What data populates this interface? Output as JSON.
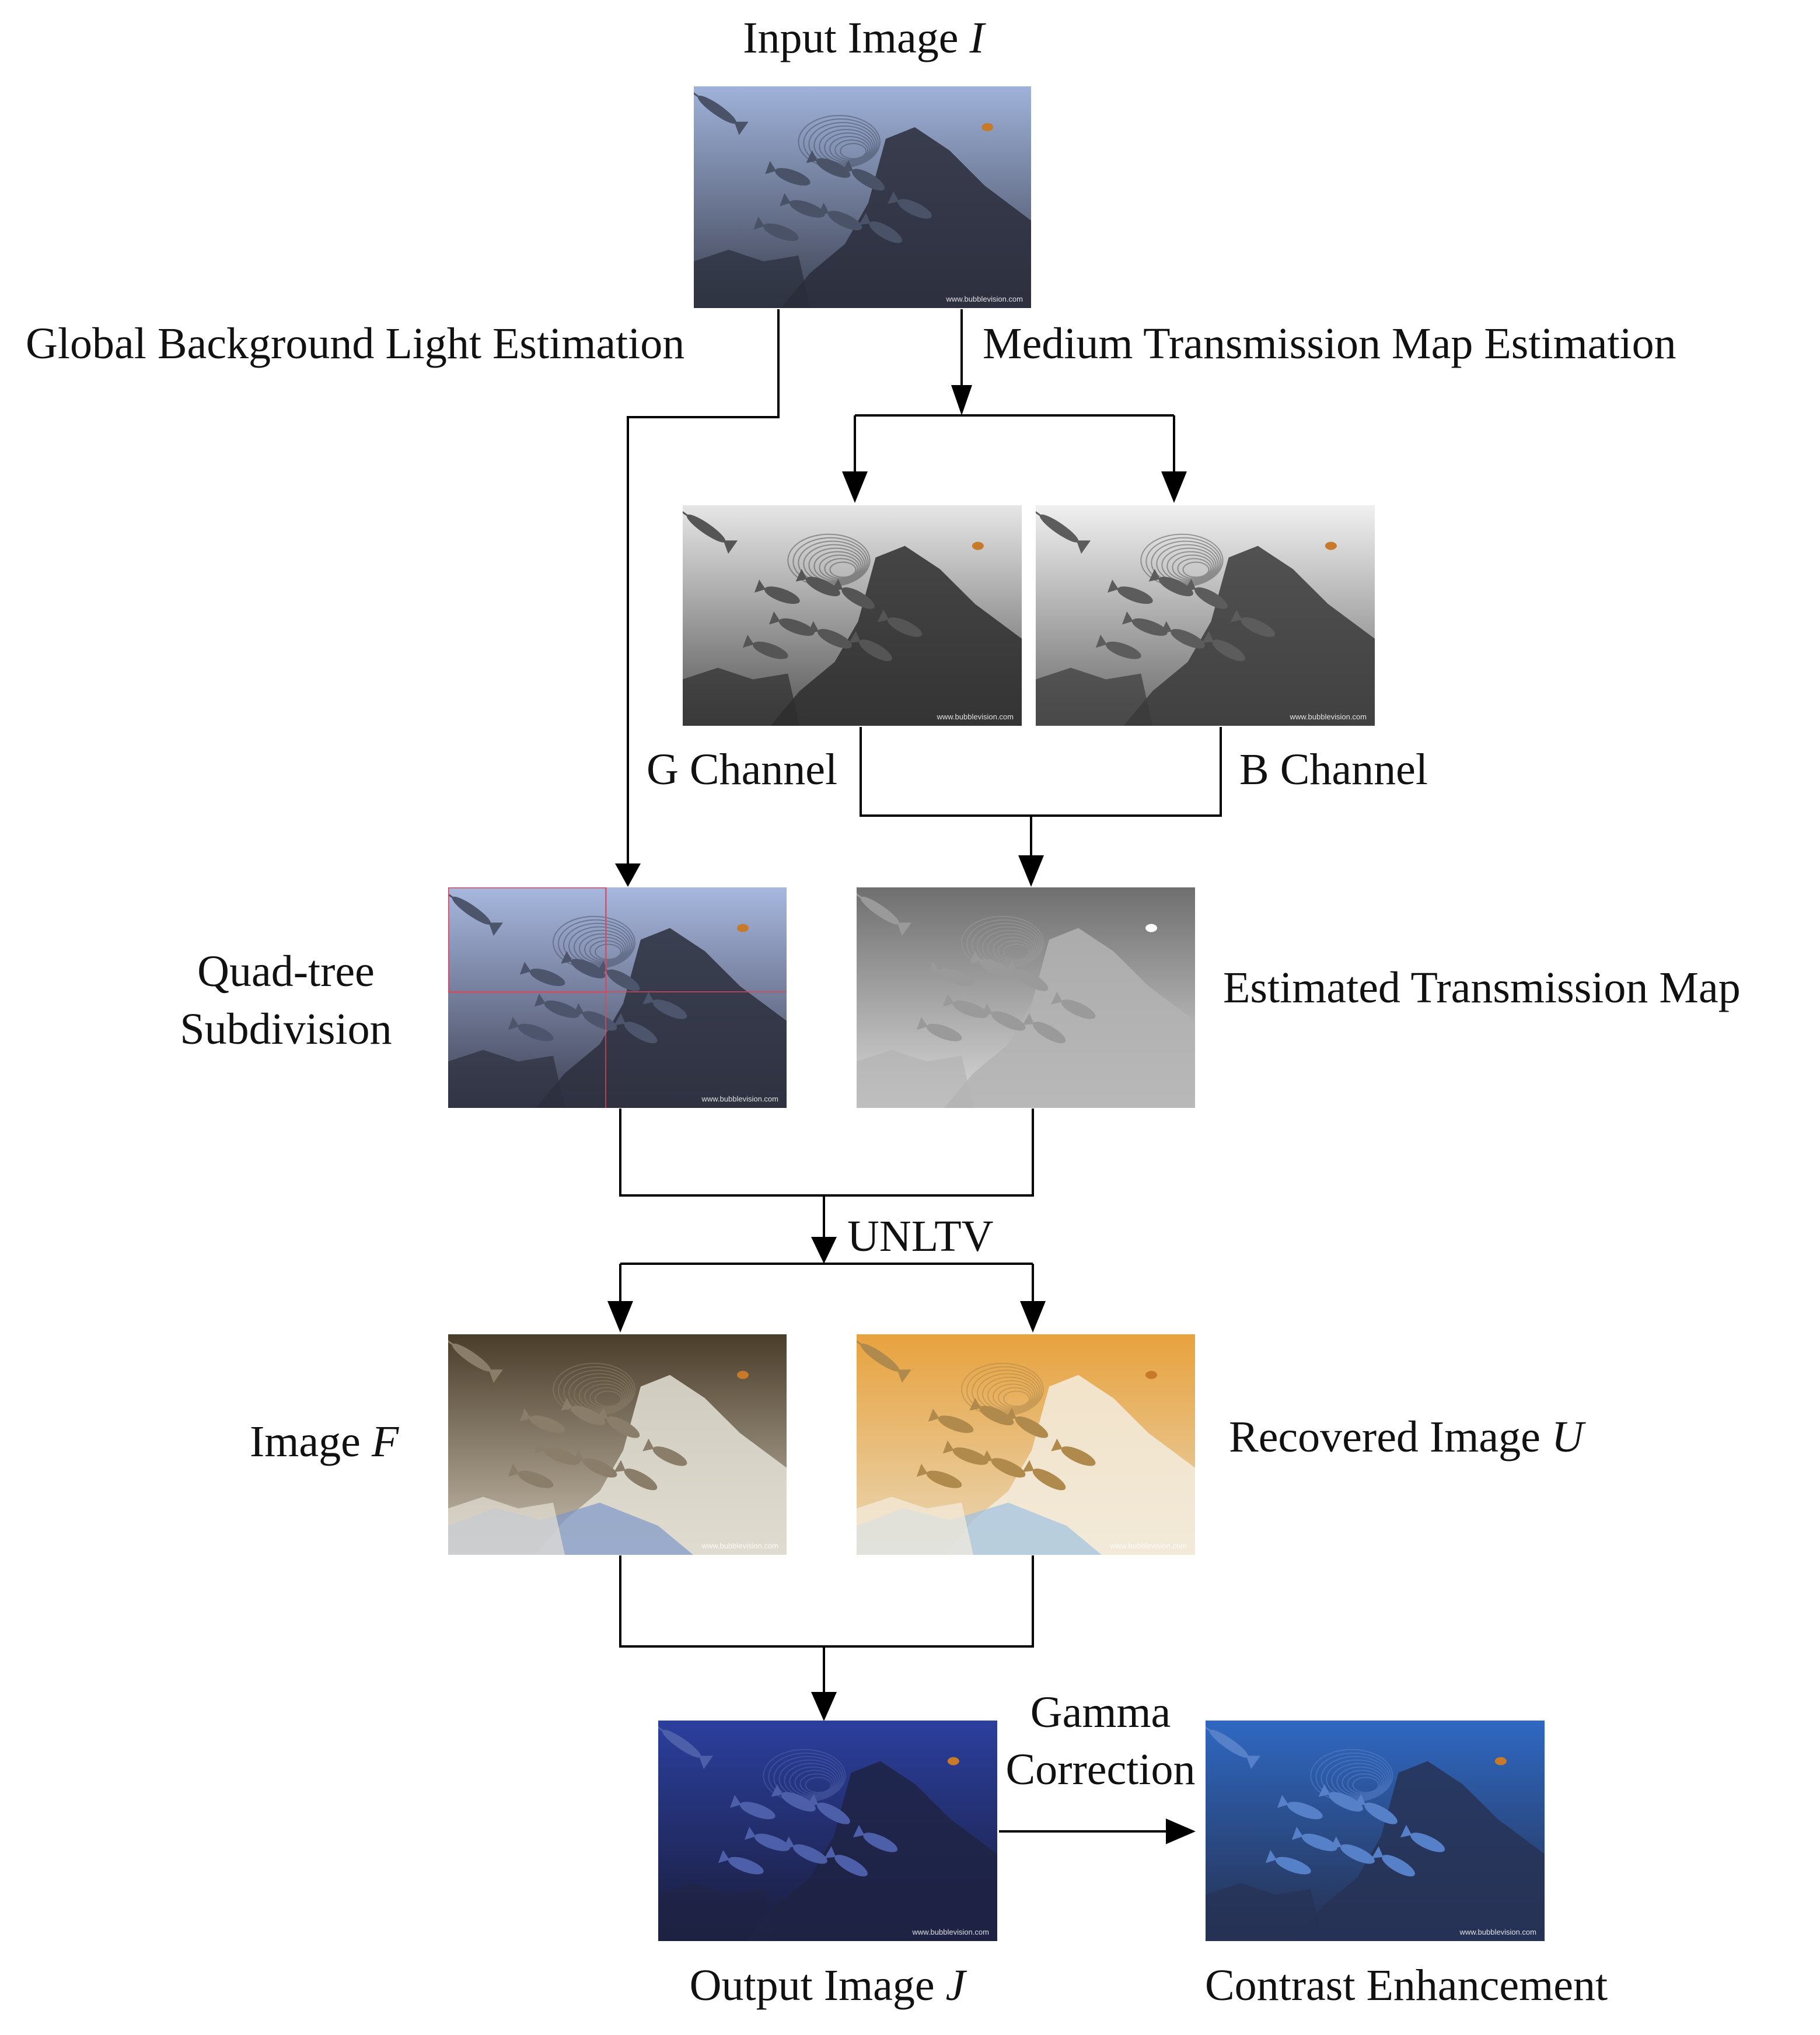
{
  "labels": {
    "input_image": "Input Image",
    "input_image_symbol": "I",
    "global_background_light_estimation": "Global Background Light Estimation",
    "medium_transmission_map_estimation": "Medium Transmission Map Estimation",
    "g_channel": "G Channel",
    "b_channel": "B Channel",
    "quad_tree_line1": "Quad-tree",
    "quad_tree_line2": "Subdivision",
    "estimated_transmission_map": "Estimated Transmission Map",
    "unltv": "UNLTV",
    "image_f": "Image",
    "image_f_symbol": "F",
    "recovered_image": "Recovered Image",
    "recovered_image_symbol": "U",
    "gamma_line1": "Gamma",
    "gamma_line2": "Correction",
    "output_image": "Output Image",
    "output_image_symbol": "J",
    "contrast_enhancement": "Contrast Enhancement"
  },
  "watermark": "www.bubblevision.com",
  "images": {
    "input": {
      "top_color": "#9fb2d9",
      "bottom_color": "#3c4152",
      "rock_color": "#2a2d3b",
      "fish_color": "#4a5268"
    },
    "g_channel": {
      "top_color": "#e6e6e6",
      "bottom_color": "#565656",
      "rock_color": "#2e2e2e",
      "fish_color": "#555555"
    },
    "b_channel": {
      "top_color": "#f0f0f0",
      "bottom_color": "#6a6a6a",
      "rock_color": "#3a3a3a",
      "fish_color": "#5c5c5c"
    },
    "quadtree": {
      "top_color": "#a7b7de",
      "bottom_color": "#3e4154",
      "rock_color": "#2c2f3d",
      "fish_color": "#4c556c",
      "grid_color": "#e0445a"
    },
    "transmission": {
      "top_color": "#6f6f6f",
      "bottom_color": "#d9d9d9",
      "rock_color": "#b3b3b3",
      "fish_color": "#9a9a9a"
    },
    "image_f": {
      "top_color": "#4a3d2a",
      "bottom_color": "#c9bfae",
      "rock_color": "#e4e0d6",
      "fish_color": "#8a7e6a",
      "accent_color": "#7d97c9"
    },
    "recovered_u": {
      "top_color": "#e8a23d",
      "bottom_color": "#e9d8b8",
      "rock_color": "#f3ecde",
      "fish_color": "#b08a4c",
      "accent_color": "#9fc2e0"
    },
    "output_j": {
      "top_color": "#2b3f9e",
      "bottom_color": "#1a1d3a",
      "rock_color": "#1f2344",
      "fish_color": "#4d5fa8"
    },
    "enhanced": {
      "top_color": "#2f68c2",
      "bottom_color": "#26304e",
      "rock_color": "#273256",
      "fish_color": "#5680c8"
    }
  }
}
